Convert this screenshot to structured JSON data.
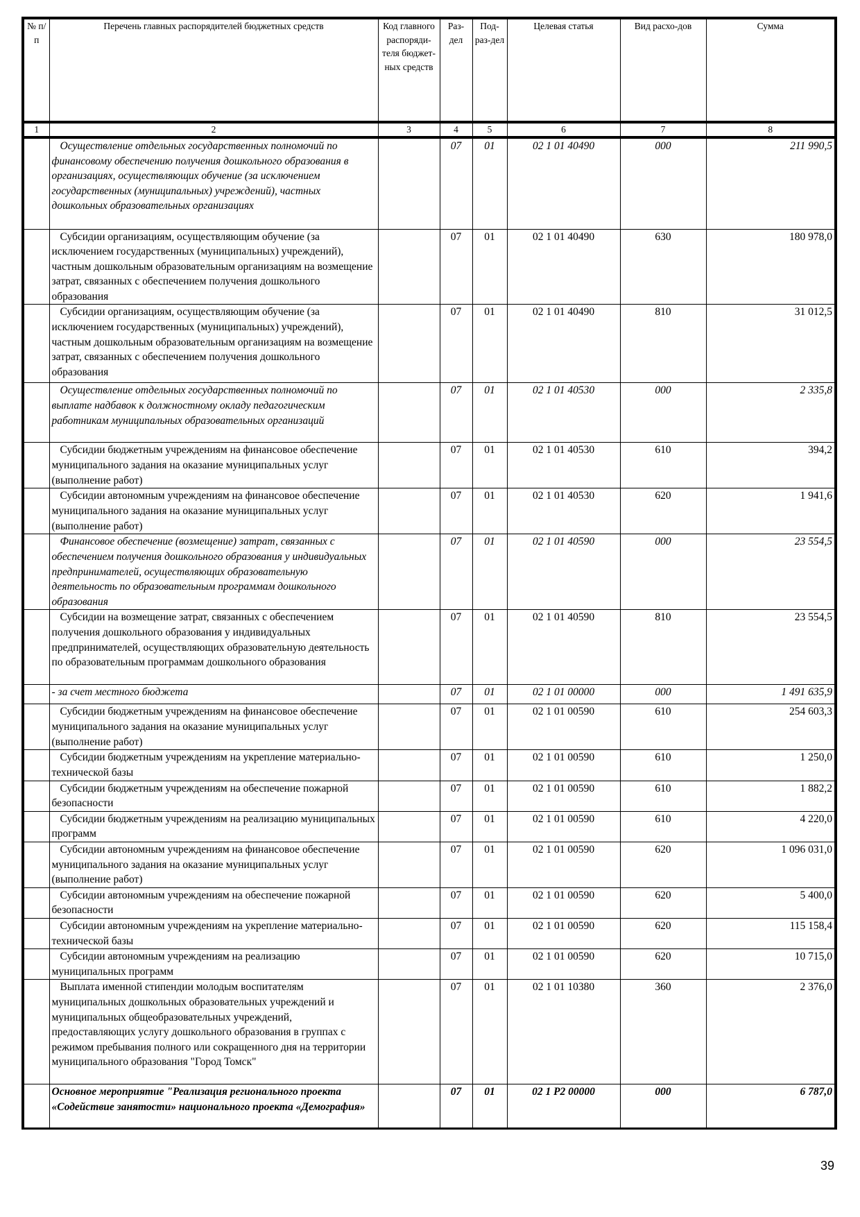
{
  "header": {
    "col1": "№ п/п",
    "col2": "Перечень главных распорядителей бюджетных средств",
    "col3": "Код главного распоряди-теля бюджет-ных средств",
    "col4": "Раз-дел",
    "col5": "Под-раз-дел",
    "col6": "Целевая статья",
    "col7": "Вид расхо-дов",
    "col8": "Сумма"
  },
  "numbers": [
    "1",
    "2",
    "3",
    "4",
    "5",
    "6",
    "7",
    "8"
  ],
  "rows": [
    {
      "name": "Осуществление отдельных государственных полномочий по финансовому обеспечению получения дошкольного образования в организациях, осуществляющих обучение (за исключением государственных (муниципальных) учреждений), частных дошкольных образовательных организациях",
      "razdel": "07",
      "podrazdel": "01",
      "cs": "02 1 01 40490",
      "vr": "000",
      "sum": "211 990,5",
      "style": "italic"
    },
    {
      "name": "Субсидии организациям, осуществляющим обучение (за исключением государственных (муниципальных) учреждений), частным дошкольным образовательным организациям на возмещение затрат, связанных с обеспечением получения дошкольного образования",
      "razdel": "07",
      "podrazdel": "01",
      "cs": "02 1 01 40490",
      "vr": "630",
      "sum": "180 978,0",
      "style": "normal"
    },
    {
      "name": "Субсидии организациям, осуществляющим обучение (за исключением государственных (муниципальных) учреждений), частным дошкольным образовательным организациям на возмещение затрат, связанных с обеспечением получения дошкольного образования",
      "razdel": "07",
      "podrazdel": "01",
      "cs": "02 1 01 40490",
      "vr": "810",
      "sum": "31 012,5",
      "style": "normal"
    },
    {
      "name": "Осуществление отдельных государственных полномочий по выплате надбавок к должностному окладу педагогическим работникам муниципальных образовательных организаций",
      "razdel": "07",
      "podrazdel": "01",
      "cs": "02 1 01 40530",
      "vr": "000",
      "sum": "2 335,8",
      "style": "italic"
    },
    {
      "name": "Субсидии бюджетным учреждениям на финансовое обеспечение муниципального задания на оказание муниципальных услуг (выполнение работ)",
      "razdel": "07",
      "podrazdel": "01",
      "cs": "02 1 01 40530",
      "vr": "610",
      "sum": "394,2",
      "style": "normal"
    },
    {
      "name": "Субсидии автономным учреждениям на финансовое обеспечение муниципального задания на оказание муниципальных услуг (выполнение работ)",
      "razdel": "07",
      "podrazdel": "01",
      "cs": "02 1 01 40530",
      "vr": "620",
      "sum": "1 941,6",
      "style": "normal"
    },
    {
      "name": "Финансовое обеспечение (возмещение) затрат, связанных с обеспечением получения дошкольного образования у индивидуальных предпринимателей, осуществляющих образовательную деятельность по образовательным программам дошкольного образования",
      "razdel": "07",
      "podrazdel": "01",
      "cs": "02 1 01 40590",
      "vr": "000",
      "sum": "23 554,5",
      "style": "italic"
    },
    {
      "name": "Субсидии на возмещение затрат, связанных с обеспечением получения дошкольного образования у индивидуальных предпринимателей, осуществляющих образовательную деятельность по образовательным программам дошкольного образования",
      "razdel": "07",
      "podrazdel": "01",
      "cs": "02 1 01 40590",
      "vr": "810",
      "sum": "23 554,5",
      "style": "normal"
    },
    {
      "name": " - за счет местного бюджета",
      "razdel": "07",
      "podrazdel": "01",
      "cs": "02 1 01 00000",
      "vr": "000",
      "sum": "1 491 635,9",
      "style": "italic"
    },
    {
      "name": "Субсидии бюджетным учреждениям на финансовое обеспечение муниципального задания на оказание муниципальных услуг (выполнение работ)",
      "razdel": "07",
      "podrazdel": "01",
      "cs": "02 1 01 00590",
      "vr": "610",
      "sum": "254 603,3",
      "style": "normal"
    },
    {
      "name": "Субсидии бюджетным учреждениям на укрепление материально-технической базы",
      "razdel": "07",
      "podrazdel": "01",
      "cs": "02 1 01 00590",
      "vr": "610",
      "sum": "1 250,0",
      "style": "normal"
    },
    {
      "name": "Субсидии бюджетным учреждениям на обеспечение пожарной безопасности",
      "razdel": "07",
      "podrazdel": "01",
      "cs": "02 1 01 00590",
      "vr": "610",
      "sum": "1 882,2",
      "style": "normal"
    },
    {
      "name": "Субсидии бюджетным учреждениям на реализацию муниципальных программ",
      "razdel": "07",
      "podrazdel": "01",
      "cs": "02 1 01 00590",
      "vr": "610",
      "sum": "4 220,0",
      "style": "normal"
    },
    {
      "name": "Субсидии автономным учреждениям на финансовое обеспечение муниципального задания на оказание муниципальных услуг (выполнение работ)",
      "razdel": "07",
      "podrazdel": "01",
      "cs": "02 1 01 00590",
      "vr": "620",
      "sum": "1 096 031,0",
      "style": "normal"
    },
    {
      "name": "Субсидии автономным учреждениям на обеспечение пожарной безопасности",
      "razdel": "07",
      "podrazdel": "01",
      "cs": "02 1 01 00590",
      "vr": "620",
      "sum": "5 400,0",
      "style": "normal"
    },
    {
      "name": "Субсидии автономным учреждениям на укрепление материально-технической базы",
      "razdel": "07",
      "podrazdel": "01",
      "cs": "02 1 01 00590",
      "vr": "620",
      "sum": "115 158,4",
      "style": "normal"
    },
    {
      "name": "Субсидии автономным учреждениям на реализацию муниципальных программ",
      "razdel": "07",
      "podrazdel": "01",
      "cs": "02 1 01 00590",
      "vr": "620",
      "sum": "10 715,0",
      "style": "normal"
    },
    {
      "name": "Выплата именной стипендии молодым воспитателям муниципальных дошкольных образовательных учреждений и муниципальных общеобразовательных учреждений, предоставляющих услугу дошкольного образования в группах с режимом пребывания полного или сокращенного дня на территории муниципального образования \"Город Томск\"",
      "razdel": "07",
      "podrazdel": "01",
      "cs": "02 1 01 10380",
      "vr": "360",
      "sum": "2 376,0",
      "style": "normal"
    },
    {
      "name": "Основное мероприятие \"Реализация регионального проекта «Содействие занятости» национального проекта «Демография»",
      "razdel": "07",
      "podrazdel": "01",
      "cs": "02 1 P2 00000",
      "vr": "000",
      "sum": "6 787,0",
      "style": "bold-italic"
    }
  ],
  "page_number": "39"
}
